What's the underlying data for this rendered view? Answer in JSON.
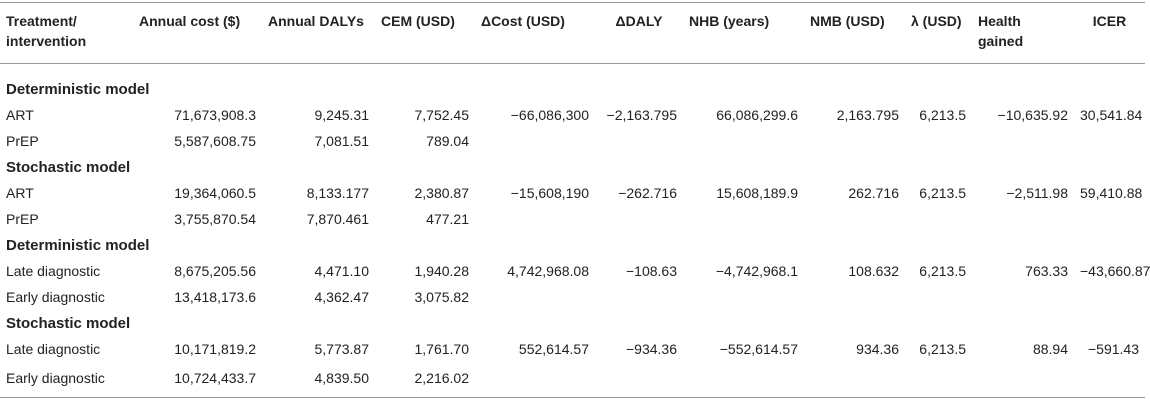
{
  "headers": {
    "treatment": "Treatment/ intervention",
    "annual_cost": "Annual cost ($)",
    "annual_dalys": "Annual DALYs",
    "cem": "CEM (USD)",
    "dcost": "ΔCost (USD)",
    "ddaly": "ΔDALY",
    "nhb": "NHB (years)",
    "nmb": "NMB (USD)",
    "lambda": "λ (USD)",
    "health_gained": "Health gained",
    "icer": "ICER"
  },
  "sections": [
    {
      "title": "Deterministic model",
      "rows": [
        {
          "name": "ART",
          "annual_cost": "71,673,908.3",
          "annual_dalys": "9,245.31",
          "cem": "7,752.45",
          "dcost": "−66,086,300",
          "ddaly": "−2,163.795",
          "nhb": "66,086,299.6",
          "nmb": "2,163.795",
          "lambda": "6,213.5",
          "health_gained": "−10,635.92",
          "icer": "30,541.84"
        },
        {
          "name": "PrEP",
          "annual_cost": "5,587,608.75",
          "annual_dalys": "7,081.51",
          "cem": "789.04",
          "dcost": "",
          "ddaly": "",
          "nhb": "",
          "nmb": "",
          "lambda": "",
          "health_gained": "",
          "icer": ""
        }
      ]
    },
    {
      "title": "Stochastic model",
      "rows": [
        {
          "name": "ART",
          "annual_cost": "19,364,060.5",
          "annual_dalys": "8,133.177",
          "cem": "2,380.87",
          "dcost": "−15,608,190",
          "ddaly": "−262.716",
          "nhb": "15,608,189.9",
          "nmb": "262.716",
          "lambda": "6,213.5",
          "health_gained": "−2,511.98",
          "icer": "59,410.88"
        },
        {
          "name": "PrEP",
          "annual_cost": "3,755,870.54",
          "annual_dalys": "7,870.461",
          "cem": "477.21",
          "dcost": "",
          "ddaly": "",
          "nhb": "",
          "nmb": "",
          "lambda": "",
          "health_gained": "",
          "icer": ""
        }
      ]
    },
    {
      "title": "Deterministic model",
      "rows": [
        {
          "name": "Late diagnostic",
          "annual_cost": "8,675,205.56",
          "annual_dalys": "4,471.10",
          "cem": "1,940.28",
          "dcost": "4,742,968.08",
          "ddaly": "−108.63",
          "nhb": "−4,742,968.1",
          "nmb": "108.632",
          "lambda": "6,213.5",
          "health_gained": "763.33",
          "icer": "−43,660.87"
        },
        {
          "name": "Early diagnostic",
          "annual_cost": "13,418,173.6",
          "annual_dalys": "4,362.47",
          "cem": "3,075.82",
          "dcost": "",
          "ddaly": "",
          "nhb": "",
          "nmb": "",
          "lambda": "",
          "health_gained": "",
          "icer": ""
        }
      ]
    },
    {
      "title": "Stochastic model",
      "rows": [
        {
          "name": "Late diagnostic",
          "annual_cost": "10,171,819.2",
          "annual_dalys": "5,773.87",
          "cem": "1,761.70",
          "dcost": "552,614.57",
          "ddaly": "−934.36",
          "nhb": "−552,614.57",
          "nmb": "934.36",
          "lambda": "6,213.5",
          "health_gained": "88.94",
          "icer": "−591.43"
        },
        {
          "name": "Early diagnostic",
          "annual_cost": "10,724,433.7",
          "annual_dalys": "4,839.50",
          "cem": "2,216.02",
          "dcost": "",
          "ddaly": "",
          "nhb": "",
          "nmb": "",
          "lambda": "",
          "health_gained": "",
          "icer": ""
        }
      ]
    }
  ]
}
